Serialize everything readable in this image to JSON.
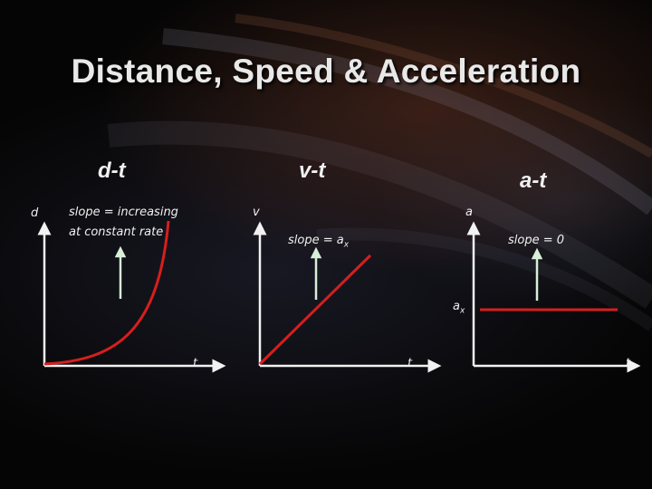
{
  "slide": {
    "title": "Distance, Speed & Acceleration",
    "colors": {
      "axis": "#f2f2f2",
      "curve": "#d71e1e",
      "arrow": "#d8efd8",
      "text": "#f0f0f0"
    }
  },
  "graphs": [
    {
      "heading": "d-t",
      "y_axis_label": "d",
      "x_axis_label": "t",
      "note_line1": "slope  =  increasing",
      "note_line2": "at constant rate"
    },
    {
      "heading": "v-t",
      "y_axis_label": "v",
      "x_axis_label": "t",
      "note": "slope  = a",
      "note_sub": "x"
    },
    {
      "heading": "a-t",
      "y_axis_label": "a",
      "x_axis_label": "t",
      "note": "slope  = 0",
      "level_label": "a",
      "level_label_sub": "x"
    }
  ]
}
